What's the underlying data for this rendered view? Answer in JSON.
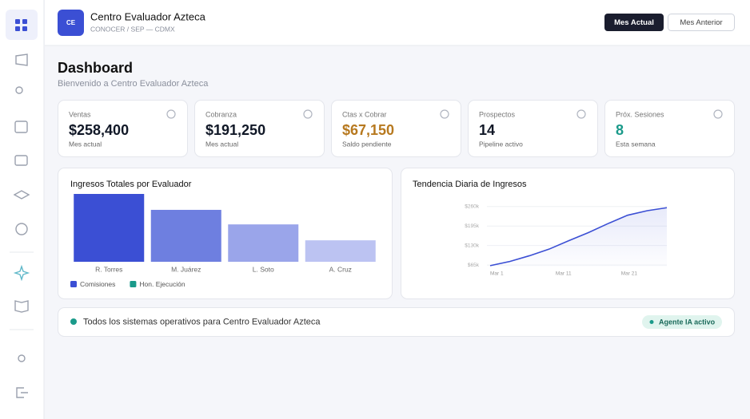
{
  "header": {
    "logo": "CE",
    "title": "Centro Evaluador Azteca",
    "subtitle": "CONOCER / SEP — CDMX",
    "buttons": [
      "Mes Actual",
      "Mes Anterior"
    ]
  },
  "page": {
    "title": "Dashboard",
    "subtitle": "Bienvenido a Centro Evaluador Azteca"
  },
  "kpis": [
    {
      "label": "Ventas",
      "value": "$258,400",
      "note": "Mes actual",
      "color": "#111827"
    },
    {
      "label": "Cobranza",
      "value": "$191,250",
      "note": "Mes actual",
      "color": "#111827"
    },
    {
      "label": "Ctas x Cobrar",
      "value": "$67,150",
      "note": "Saldo pendiente",
      "color": "#b7791f"
    },
    {
      "label": "Prospectos",
      "value": "14",
      "note": "Pipeline activo",
      "color": "#111827"
    },
    {
      "label": "Próx. Sesiones",
      "value": "8",
      "note": "Esta semana",
      "color": "#1a9a8a"
    }
  ],
  "charts": [
    {
      "type": "bar",
      "title": "Ingresos Totales por Evaluador",
      "categories": [
        "R. Torres",
        "M. Juárez",
        "L. Soto",
        "A. Cruz"
      ],
      "values": [
        98000,
        75000,
        54000,
        31000
      ],
      "colors": [
        "#3b4fd4",
        "#6e7fe0",
        "#9aa5ea",
        "#bcc3f2"
      ],
      "legend": [
        {
          "name": "Comisiones",
          "color": "#3b4fd4"
        },
        {
          "name": "Hon. Ejecución",
          "color": "#1a9a8a"
        }
      ]
    },
    {
      "type": "line",
      "title": "Tendencia Diaria de Ingresos",
      "x": [
        1,
        4,
        7,
        10,
        13,
        16,
        19,
        22,
        25,
        28
      ],
      "values": [
        63000,
        77000,
        96000,
        118000,
        146000,
        173000,
        203000,
        231000,
        246000,
        256000
      ],
      "color": "#3b4fd4",
      "xlim": [
        1,
        28
      ],
      "xticks": [
        {
          "value": 1,
          "label": "Mar 1"
        },
        {
          "value": 11,
          "label": "Mar 11"
        },
        {
          "value": 21,
          "label": "Mar 21"
        }
      ],
      "ylim": [
        60000,
        262000
      ],
      "yticks": [
        {
          "value": 65000,
          "label": "$65k"
        },
        {
          "value": 130000,
          "label": "$130k"
        },
        {
          "value": 195000,
          "label": "$195k"
        },
        {
          "value": 260000,
          "label": "$260k"
        }
      ],
      "grid": true
    }
  ],
  "status": {
    "message": "Todos los sistemas operativos para Centro Evaluador Azteca",
    "badge": "Agente IA activo"
  }
}
